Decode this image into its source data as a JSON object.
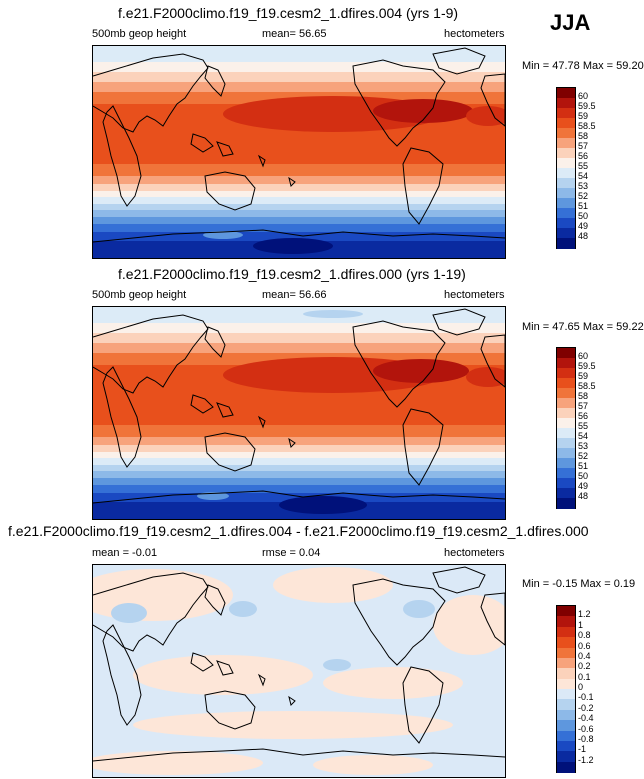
{
  "season": "JJA",
  "panels": [
    {
      "title": "f.e21.F2000climo.f19_f19.cesm2_1.dfires.004 (yrs 1-9)",
      "left": "500mb geop height",
      "center": "mean=  56.65",
      "right": "hectometers",
      "minmax": "Min = 47.78 Max = 59.20",
      "palette": "level",
      "colorbar_labels": [
        "60",
        "59.5",
        "59",
        "58.5",
        "58",
        "57",
        "56",
        "55",
        "54",
        "53",
        "52",
        "51",
        "50",
        "49",
        "48"
      ]
    },
    {
      "title": "f.e21.F2000climo.f19_f19.cesm2_1.dfires.000 (yrs 1-19)",
      "left": "500mb geop height",
      "center": "mean=  56.66",
      "right": "hectometers",
      "minmax": "Min = 47.65 Max = 59.22",
      "palette": "level",
      "colorbar_labels": [
        "60",
        "59.5",
        "59",
        "58.5",
        "58",
        "57",
        "56",
        "55",
        "54",
        "53",
        "52",
        "51",
        "50",
        "49",
        "48"
      ]
    },
    {
      "title": "f.e21.F2000climo.f19_f19.cesm2_1.dfires.004 - f.e21.F2000climo.f19_f19.cesm2_1.dfires.000",
      "left": "mean =  -0.01",
      "center": "rmse =  0.04",
      "right": "hectometers",
      "minmax": "Min = -0.15 Max =  0.19",
      "palette": "diff",
      "colorbar_labels": [
        "1.2",
        "1",
        "0.8",
        "0.6",
        "0.4",
        "0.2",
        "0.1",
        "0",
        "-0.1",
        "-0.2",
        "-0.4",
        "-0.6",
        "-0.8",
        "-1",
        "-1.2"
      ]
    }
  ],
  "colors": {
    "level": [
      "#7f0000",
      "#b2140c",
      "#d32f12",
      "#e8501c",
      "#f0743a",
      "#f7a37c",
      "#fbd2bb",
      "#fbf1ea",
      "#dcebf7",
      "#b5d3ef",
      "#8db9e8",
      "#5e97de",
      "#3570d6",
      "#1a49c2",
      "#0a2aa0",
      "#00117a"
    ],
    "diff": [
      "#7f0000",
      "#b2140c",
      "#d32f12",
      "#e8501c",
      "#f0743a",
      "#f7a37c",
      "#fbd2bb",
      "#fde6d8",
      "#dbe9f7",
      "#b5d3ef",
      "#8db9e8",
      "#5e97de",
      "#3570d6",
      "#1a49c2",
      "#0a2aa0",
      "#00117a"
    ]
  }
}
